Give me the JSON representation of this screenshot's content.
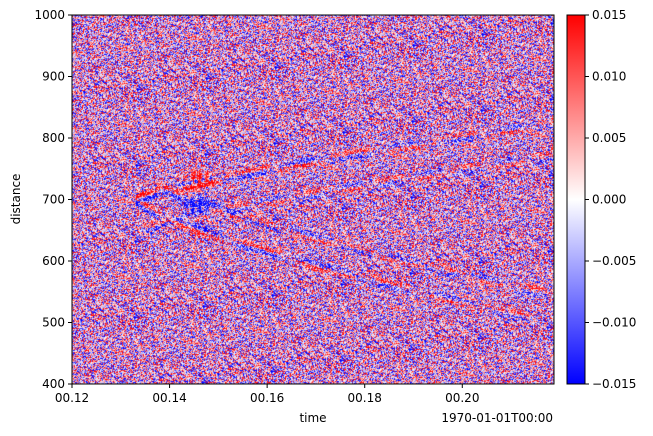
{
  "chart_data": {
    "type": "heatmap",
    "title": "",
    "xlabel": "time",
    "ylabel": "distance",
    "x_offset_label": "1970-01-01T00:00",
    "x_ticks": [
      "00.12",
      "00.14",
      "00.16",
      "00.18",
      "00.20"
    ],
    "x_tick_values": [
      0.12,
      0.14,
      0.16,
      0.18,
      0.2
    ],
    "xlim": [
      0.12,
      0.2188
    ],
    "y_ticks": [
      "400",
      "500",
      "600",
      "700",
      "800",
      "900",
      "1000"
    ],
    "y_tick_values": [
      400,
      500,
      600,
      700,
      800,
      900,
      1000
    ],
    "ylim": [
      400,
      1000
    ],
    "colormap": "bwr",
    "colormap_colors": [
      "#0000ff",
      "#ffffff",
      "#ff0000"
    ],
    "colorbar": {
      "vmin": -0.015,
      "vmax": 0.015,
      "ticks": [
        -0.015,
        -0.01,
        -0.005,
        0.0,
        0.005,
        0.01,
        0.015
      ],
      "tick_labels": [
        "−0.015",
        "−0.010",
        "−0.005",
        "0.000",
        "0.005",
        "0.010",
        "0.015"
      ]
    },
    "features": [
      {
        "kind": "arc",
        "apex_time": 0.133,
        "apex_distance": 700,
        "upper_end_time": 0.215,
        "upper_end_distance": 820,
        "lower_end_time": 0.21,
        "lower_end_distance": 515
      },
      {
        "kind": "blob",
        "time": 0.146,
        "distance": 735,
        "polarity": "positive"
      },
      {
        "kind": "blob",
        "time": 0.146,
        "distance": 693,
        "polarity": "negative"
      }
    ]
  }
}
